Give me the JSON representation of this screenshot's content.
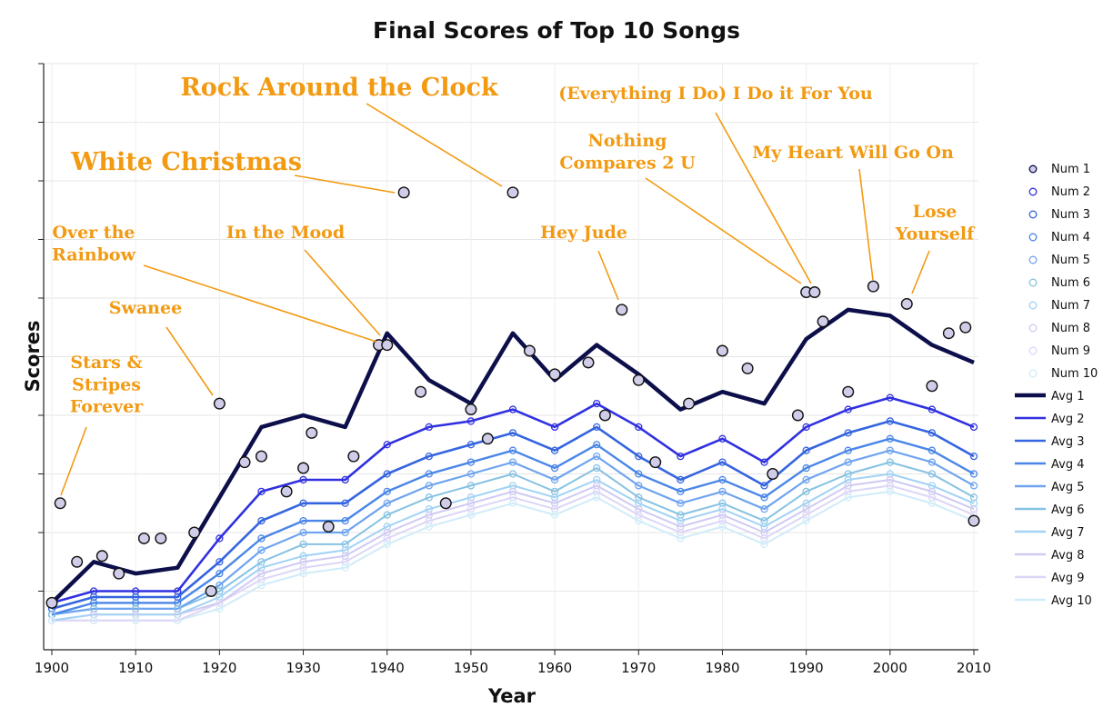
{
  "chart_data": {
    "type": "line",
    "title": "Final Scores of Top 10 Songs",
    "xlabel": "Year",
    "ylabel": "Scores",
    "x_ticks": [
      "1900",
      "1910",
      "1920",
      "1930",
      "1940",
      "1950",
      "1960",
      "1970",
      "1980",
      "1990",
      "2000",
      "2010"
    ],
    "xlim": [
      1900,
      2011
    ],
    "ylim": [
      0,
      100
    ],
    "y_tick_labels_shown": false,
    "grid": "light",
    "legend_position": "right",
    "legend": [
      "Num 1",
      "Num 2",
      "Num 3",
      "Num 4",
      "Num 5",
      "Num 6",
      "Num 7",
      "Num 8",
      "Num 9",
      "Num 10",
      "Avg 1",
      "Avg 2",
      "Avg 3",
      "Avg 4",
      "Avg 5",
      "Avg 6",
      "Avg 7",
      "Avg 8",
      "Avg 9",
      "Avg 10"
    ],
    "colors": [
      "#0d0f4a",
      "#3030e0",
      "#3564e0",
      "#4a86e8",
      "#6fa4ef",
      "#86c2e2",
      "#a2d2f4",
      "#cfcaf2",
      "#dcd6f7",
      "#d0ecf8"
    ],
    "avg_series": {
      "x": [
        1900,
        1905,
        1910,
        1915,
        1920,
        1925,
        1930,
        1935,
        1940,
        1945,
        1950,
        1955,
        1960,
        1965,
        1970,
        1975,
        1980,
        1985,
        1990,
        1995,
        2000,
        2005,
        2010
      ],
      "avg1": [
        8,
        15,
        13,
        14,
        26,
        38,
        40,
        38,
        54,
        46,
        42,
        54,
        46,
        52,
        47,
        41,
        44,
        42,
        53,
        58,
        57,
        52,
        49
      ],
      "avg2": [
        8,
        10,
        10,
        10,
        19,
        27,
        29,
        29,
        35,
        38,
        39,
        41,
        38,
        42,
        38,
        33,
        36,
        32,
        38,
        41,
        43,
        41,
        38
      ],
      "avg3": [
        7,
        9,
        9,
        9,
        15,
        22,
        25,
        25,
        30,
        33,
        35,
        37,
        34,
        38,
        33,
        29,
        32,
        28,
        34,
        37,
        39,
        37,
        33
      ],
      "avg4": [
        6,
        8,
        8,
        8,
        13,
        19,
        22,
        22,
        27,
        30,
        32,
        34,
        31,
        35,
        30,
        27,
        29,
        26,
        31,
        34,
        36,
        34,
        30
      ],
      "avg5": [
        6,
        7,
        7,
        7,
        11,
        17,
        20,
        20,
        25,
        28,
        30,
        32,
        29,
        33,
        28,
        25,
        27,
        24,
        29,
        32,
        34,
        32,
        28
      ],
      "avg6": [
        6,
        7,
        7,
        7,
        10,
        15,
        18,
        18,
        23,
        26,
        28,
        30,
        27,
        31,
        26,
        23,
        25,
        22,
        27,
        30,
        32,
        30,
        26
      ],
      "avg7": [
        5,
        6,
        6,
        6,
        9,
        14,
        16,
        17,
        21,
        24,
        26,
        28,
        26,
        29,
        25,
        22,
        24,
        21,
        25,
        29,
        30,
        28,
        25
      ],
      "avg8": [
        5,
        6,
        6,
        6,
        8,
        13,
        15,
        16,
        20,
        23,
        25,
        27,
        25,
        28,
        24,
        21,
        23,
        20,
        24,
        28,
        29,
        27,
        24
      ],
      "avg9": [
        5,
        5,
        5,
        5,
        8,
        12,
        14,
        15,
        19,
        22,
        24,
        26,
        24,
        27,
        23,
        20,
        22,
        19,
        23,
        27,
        28,
        26,
        23
      ],
      "avg10": [
        5,
        5,
        5,
        5,
        7,
        11,
        13,
        14,
        18,
        21,
        23,
        25,
        23,
        26,
        22,
        19,
        21,
        18,
        22,
        26,
        27,
        25,
        22
      ]
    },
    "num1_points": [
      {
        "x": 1900,
        "y": 8
      },
      {
        "x": 1901,
        "y": 25
      },
      {
        "x": 1903,
        "y": 15
      },
      {
        "x": 1906,
        "y": 16
      },
      {
        "x": 1908,
        "y": 13
      },
      {
        "x": 1911,
        "y": 19
      },
      {
        "x": 1913,
        "y": 19
      },
      {
        "x": 1917,
        "y": 20
      },
      {
        "x": 1919,
        "y": 10
      },
      {
        "x": 1920,
        "y": 42
      },
      {
        "x": 1923,
        "y": 32
      },
      {
        "x": 1925,
        "y": 33
      },
      {
        "x": 1928,
        "y": 27
      },
      {
        "x": 1930,
        "y": 31
      },
      {
        "x": 1931,
        "y": 37
      },
      {
        "x": 1933,
        "y": 21
      },
      {
        "x": 1936,
        "y": 33
      },
      {
        "x": 1939,
        "y": 52
      },
      {
        "x": 1940,
        "y": 52
      },
      {
        "x": 1942,
        "y": 78
      },
      {
        "x": 1944,
        "y": 44
      },
      {
        "x": 1947,
        "y": 25
      },
      {
        "x": 1950,
        "y": 41
      },
      {
        "x": 1952,
        "y": 36
      },
      {
        "x": 1955,
        "y": 78
      },
      {
        "x": 1957,
        "y": 51
      },
      {
        "x": 1960,
        "y": 47
      },
      {
        "x": 1964,
        "y": 49
      },
      {
        "x": 1966,
        "y": 40
      },
      {
        "x": 1968,
        "y": 58
      },
      {
        "x": 1970,
        "y": 46
      },
      {
        "x": 1972,
        "y": 32
      },
      {
        "x": 1976,
        "y": 42
      },
      {
        "x": 1980,
        "y": 51
      },
      {
        "x": 1983,
        "y": 48
      },
      {
        "x": 1986,
        "y": 30
      },
      {
        "x": 1989,
        "y": 40
      },
      {
        "x": 1990,
        "y": 61
      },
      {
        "x": 1991,
        "y": 61
      },
      {
        "x": 1992,
        "y": 56
      },
      {
        "x": 1995,
        "y": 44
      },
      {
        "x": 1998,
        "y": 62
      },
      {
        "x": 2002,
        "y": 59
      },
      {
        "x": 2005,
        "y": 45
      },
      {
        "x": 2007,
        "y": 54
      },
      {
        "x": 2009,
        "y": 55
      },
      {
        "x": 2010,
        "y": 22
      }
    ],
    "annotations": [
      {
        "text": "Stars & Stripes Forever",
        "lines": [
          "Stars &",
          "Stripes",
          "Forever"
        ],
        "x": 1901,
        "y": 25
      },
      {
        "text": "Swanee",
        "lines": [
          "Swanee"
        ],
        "x": 1920,
        "y": 42
      },
      {
        "text": "Over the Rainbow",
        "lines": [
          "Over the",
          "Rainbow"
        ],
        "x": 1939,
        "y": 52
      },
      {
        "text": "In the Mood",
        "lines": [
          "In the Mood"
        ],
        "x": 1940,
        "y": 52
      },
      {
        "text": "White Christmas",
        "lines": [
          "White Christmas"
        ],
        "x": 1942,
        "y": 78
      },
      {
        "text": "Rock Around the Clock",
        "lines": [
          "Rock Around the Clock"
        ],
        "x": 1955,
        "y": 78
      },
      {
        "text": "Hey Jude",
        "lines": [
          "Hey Jude"
        ],
        "x": 1968,
        "y": 58
      },
      {
        "text": "Nothing Compares 2 U",
        "lines": [
          "Nothing",
          "Compares 2 U"
        ],
        "x": 1990,
        "y": 61
      },
      {
        "text": "(Everything I Do) I Do it For You",
        "lines": [
          "(Everything I Do) I Do it For You"
        ],
        "x": 1991,
        "y": 61
      },
      {
        "text": "My Heart Will Go On",
        "lines": [
          "My Heart Will Go On"
        ],
        "x": 1998,
        "y": 62
      },
      {
        "text": "Lose Yourself",
        "lines": [
          "Lose",
          "Yourself"
        ],
        "x": 2002,
        "y": 59
      }
    ]
  }
}
